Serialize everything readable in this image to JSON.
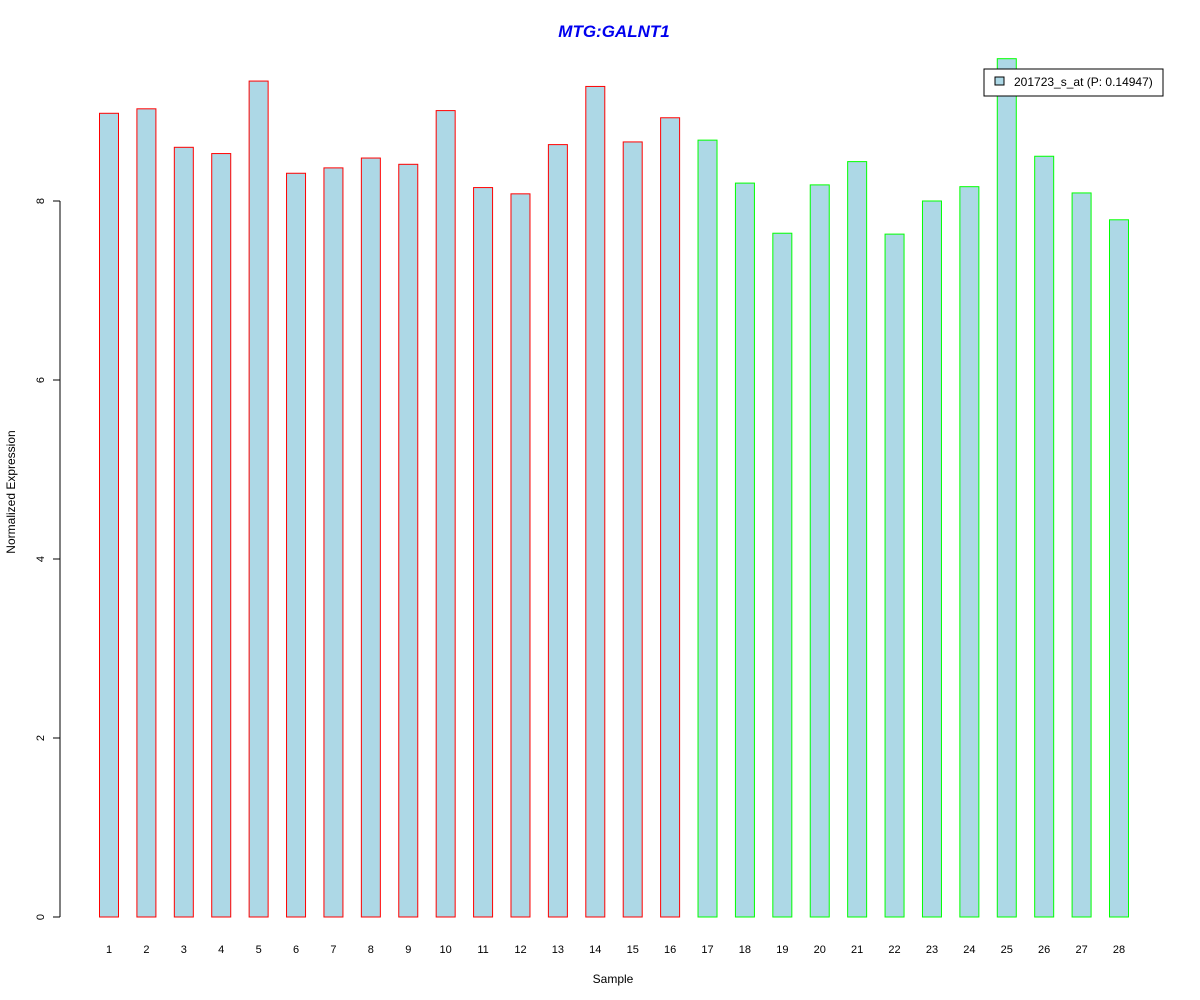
{
  "chart_data": {
    "type": "bar",
    "title": "MTG:GALNT1",
    "xlabel": "Sample",
    "ylabel": "Normalized Expression",
    "ylim": [
      0,
      9.6
    ],
    "yticks": [
      "0",
      "2",
      "4",
      "6",
      "8"
    ],
    "grid": false,
    "legend": {
      "placement": "top-right",
      "label": "201723_s_at (P: 0.14947)"
    },
    "categories": [
      "1",
      "2",
      "3",
      "4",
      "5",
      "6",
      "7",
      "8",
      "9",
      "10",
      "11",
      "12",
      "13",
      "14",
      "15",
      "16",
      "17",
      "18",
      "19",
      "20",
      "21",
      "22",
      "23",
      "24",
      "25",
      "26",
      "27",
      "28"
    ],
    "values": [
      8.98,
      9.03,
      8.6,
      8.53,
      9.34,
      8.31,
      8.37,
      8.48,
      8.41,
      9.01,
      8.15,
      8.08,
      8.63,
      9.28,
      8.66,
      8.93,
      8.68,
      8.2,
      7.64,
      8.18,
      8.44,
      7.63,
      8.0,
      8.16,
      9.59,
      8.5,
      8.09,
      7.79
    ],
    "groups": [
      "red",
      "red",
      "red",
      "red",
      "red",
      "red",
      "red",
      "red",
      "red",
      "red",
      "red",
      "red",
      "red",
      "red",
      "red",
      "red",
      "green",
      "green",
      "green",
      "green",
      "green",
      "green",
      "green",
      "green",
      "green",
      "green",
      "green",
      "green"
    ],
    "colors": {
      "fill": "#add8e6",
      "red": "#ff0000",
      "green": "#00ff00",
      "title": "#0000ee"
    }
  }
}
